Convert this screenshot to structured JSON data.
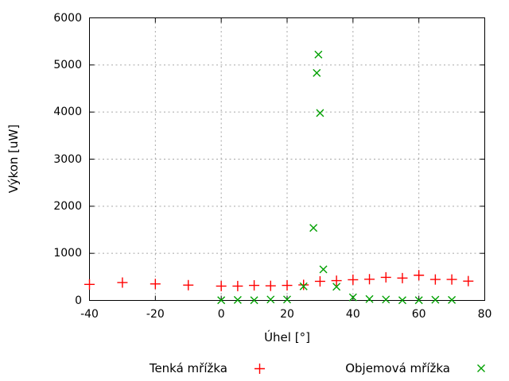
{
  "chart_data": {
    "type": "scatter",
    "title": "",
    "xlabel": "Úhel [°]",
    "ylabel": "Výkon [uW]",
    "xlim": [
      -40,
      80
    ],
    "ylim": [
      0,
      6000
    ],
    "xticks": [
      -40,
      -20,
      0,
      20,
      40,
      60,
      80
    ],
    "yticks": [
      0,
      1000,
      2000,
      3000,
      4000,
      5000,
      6000
    ],
    "grid": true,
    "legend_position": "bottom-center",
    "series": [
      {
        "name": "Tenká mřížka",
        "marker": "plus",
        "color": "#ff0000",
        "points": [
          [
            -40,
            340
          ],
          [
            -30,
            380
          ],
          [
            -20,
            350
          ],
          [
            -10,
            325
          ],
          [
            0,
            305
          ],
          [
            5,
            305
          ],
          [
            10,
            320
          ],
          [
            15,
            310
          ],
          [
            20,
            320
          ],
          [
            25,
            330
          ],
          [
            30,
            405
          ],
          [
            35,
            420
          ],
          [
            40,
            440
          ],
          [
            45,
            450
          ],
          [
            50,
            490
          ],
          [
            55,
            475
          ],
          [
            60,
            535
          ],
          [
            65,
            445
          ],
          [
            70,
            445
          ],
          [
            75,
            410
          ]
        ]
      },
      {
        "name": "Objemová mřížka",
        "marker": "cross",
        "color": "#00a000",
        "points": [
          [
            0,
            5
          ],
          [
            5,
            10
          ],
          [
            10,
            5
          ],
          [
            15,
            20
          ],
          [
            20,
            20
          ],
          [
            25,
            300
          ],
          [
            28,
            1540
          ],
          [
            29,
            4830
          ],
          [
            29.5,
            5220
          ],
          [
            30,
            3980
          ],
          [
            31,
            660
          ],
          [
            35,
            290
          ],
          [
            40,
            65
          ],
          [
            45,
            30
          ],
          [
            50,
            20
          ],
          [
            55,
            5
          ],
          [
            60,
            5
          ],
          [
            65,
            15
          ],
          [
            70,
            10
          ]
        ]
      }
    ]
  },
  "colors": {
    "background": "#ffffff",
    "axis": "#000000",
    "grid": "#a6a6a6",
    "text": "#000000"
  }
}
